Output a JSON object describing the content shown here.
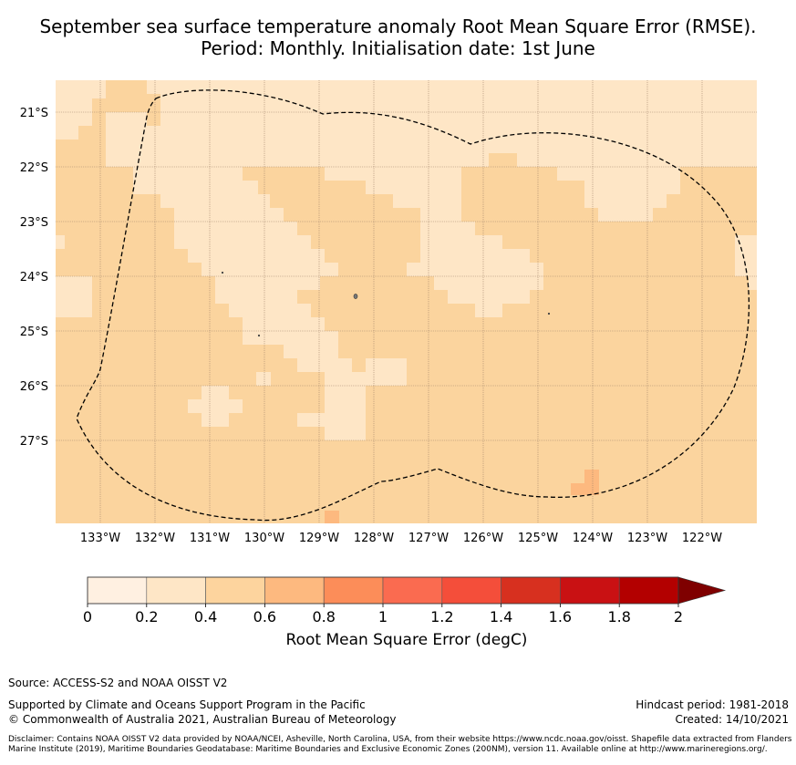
{
  "title": {
    "line1": "September sea surface temperature anomaly Root Mean Square Error (RMSE).",
    "line2": "Period: Monthly. Initialisation date: 1st June"
  },
  "map": {
    "lon_range": [
      133.8,
      121.0
    ],
    "lat_range": [
      20.45,
      28.55
    ],
    "lon_ticks": [
      "133°W",
      "132°W",
      "131°W",
      "130°W",
      "129°W",
      "128°W",
      "127°W",
      "126°W",
      "125°W",
      "124°W",
      "123°W",
      "122°W"
    ],
    "lat_ticks": [
      "21°S",
      "22°S",
      "23°S",
      "24°S",
      "25°S",
      "26°S",
      "27°S"
    ],
    "background_color": "#fbd49e",
    "low_error_color": "#fee6c6",
    "mid_error_color": "#fdb97f",
    "eez_boundary": "dashed"
  },
  "colorbar": {
    "title": "Root Mean Square Error (degC)",
    "tick_labels": [
      "0",
      "0.2",
      "0.4",
      "0.6",
      "0.8",
      "1",
      "1.2",
      "1.4",
      "1.6",
      "1.8",
      "2"
    ],
    "colors": [
      "#fff0e1",
      "#fee6c6",
      "#fdd49e",
      "#fdb97f",
      "#fc8d59",
      "#fa6b50",
      "#f44e3a",
      "#d7301f",
      "#c91113",
      "#b30000",
      "#7f0000"
    ],
    "extend": "max"
  },
  "footer": {
    "source": "Source: ACCESS-S2 and NOAA OISST V2",
    "supported": "Supported by Climate and Oceans Support Program in the Pacific",
    "copyright": "© Commonwealth of Australia 2021, Australian Bureau of Meteorology",
    "hindcast": "Hindcast period: 1981-2018",
    "created": "Created: 14/10/2021",
    "disclaimer": "Disclaimer: Contains NOAA OISST V2 data provided by NOAA/NCEI, Asheville, North Carolina, USA, from their website https://www.ncdc.noaa.gov/oisst. Shapefile data extracted from Flanders Marine Institute (2019), Maritime Boundaries Geodatabase: Maritime Boundaries and Exclusive Economic Zones (200NM), version 11. Available online at http://www.marineregions.org/."
  }
}
